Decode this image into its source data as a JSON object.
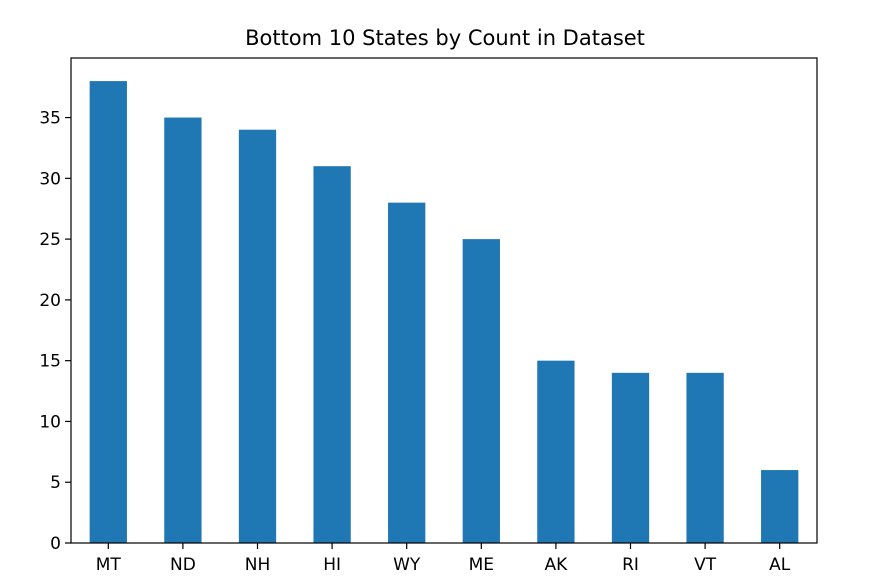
{
  "chart_data": {
    "type": "bar",
    "title": "Bottom 10 States by Count in Dataset",
    "xlabel": "",
    "ylabel": "",
    "categories": [
      "MT",
      "ND",
      "NH",
      "HI",
      "WY",
      "ME",
      "AK",
      "RI",
      "VT",
      "AL"
    ],
    "values": [
      38,
      35,
      34,
      31,
      28,
      25,
      15,
      14,
      14,
      6
    ],
    "ylim": [
      0,
      39.9
    ],
    "yticks": [
      "0",
      "5",
      "10",
      "15",
      "20",
      "25",
      "30",
      "35"
    ],
    "grid": false,
    "legend": "none",
    "bar_color": "#1f77b4"
  }
}
